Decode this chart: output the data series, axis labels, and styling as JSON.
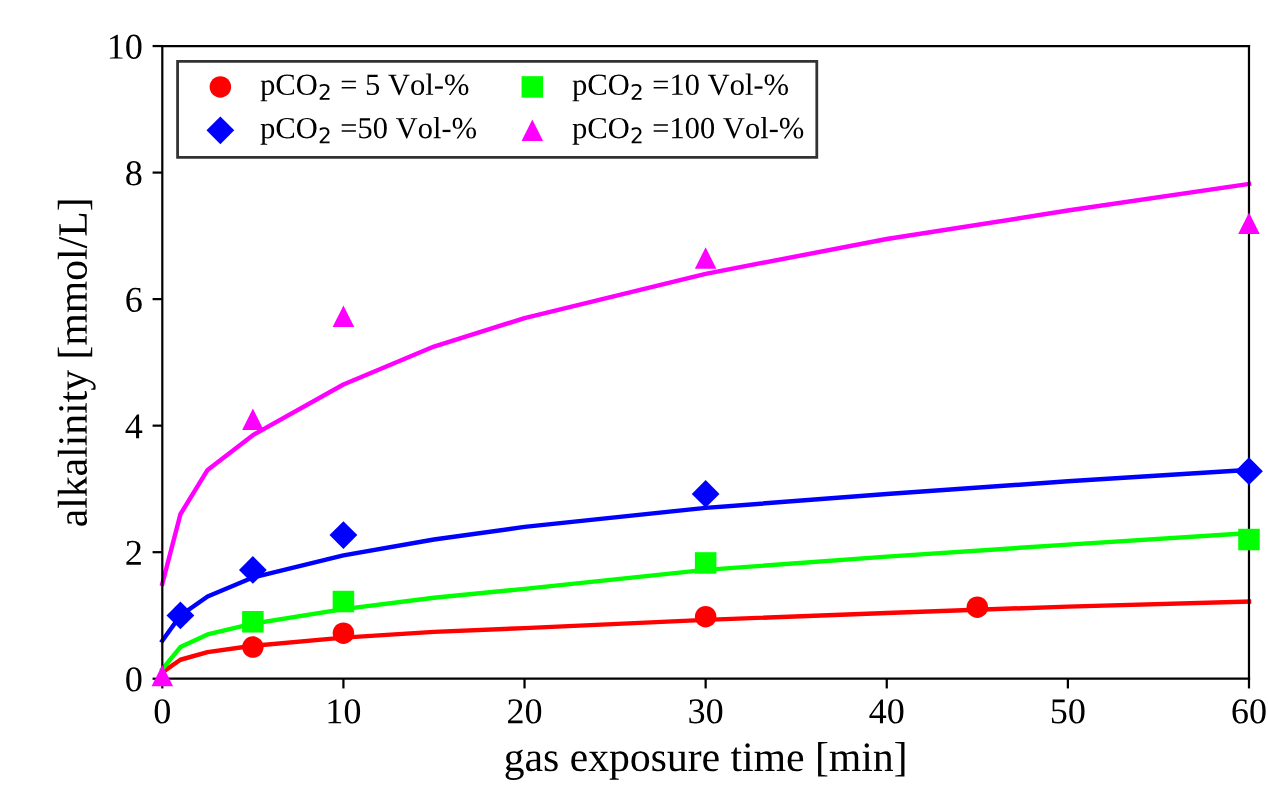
{
  "chart_data": {
    "type": "scatter",
    "xlabel": "gas exposure time [min]",
    "ylabel": "alkalinity [mmol/L]",
    "xlim": [
      0,
      60
    ],
    "xticks": [
      0,
      10,
      20,
      30,
      40,
      50,
      60
    ],
    "ylim": [
      0,
      10
    ],
    "yticks": [
      0,
      2,
      4,
      6,
      8,
      10
    ],
    "grid": false,
    "legend": "top left",
    "series": [
      {
        "name": "pCO$_{2}$ = 5 Vol-%",
        "color": "#ff0000",
        "marker": "circle",
        "x": [
          5,
          10,
          30,
          45
        ],
        "values": [
          0.5,
          0.72,
          0.98,
          1.13
        ]
      },
      {
        "name": "pCO$_{2}$ =10 Vol-%",
        "color": "#00ff00",
        "marker": "square",
        "x": [
          5,
          10,
          30,
          60
        ],
        "values": [
          0.9,
          1.22,
          1.83,
          2.2
        ]
      },
      {
        "name": "pCO$_{2}$ =50 Vol-%",
        "color": "#0000ff",
        "marker": "diamond",
        "x": [
          1,
          5,
          10,
          30,
          60
        ],
        "values": [
          1.0,
          1.72,
          2.27,
          2.92,
          3.28
        ]
      },
      {
        "name": "pCO$_{2}$ =100 Vol-%",
        "color": "#ff00ff",
        "marker": "triangle",
        "x": [
          0,
          5,
          10,
          30,
          60
        ],
        "values": [
          0.05,
          4.1,
          5.73,
          6.65,
          7.2
        ]
      },
      {
        "type": "line",
        "color": "#ff0000",
        "line_style": "solid",
        "x": [
          0,
          1,
          2.5,
          5,
          10,
          15,
          20,
          30,
          40,
          50,
          60
        ],
        "values": [
          0.1,
          0.3,
          0.42,
          0.52,
          0.65,
          0.74,
          0.8,
          0.93,
          1.04,
          1.14,
          1.22
        ]
      },
      {
        "type": "line",
        "color": "#00ff00",
        "line_style": "solid",
        "x": [
          0,
          1,
          2.5,
          5,
          10,
          15,
          20,
          30,
          40,
          50,
          60
        ],
        "values": [
          0.15,
          0.5,
          0.7,
          0.87,
          1.1,
          1.28,
          1.42,
          1.72,
          1.93,
          2.12,
          2.3
        ]
      },
      {
        "type": "line",
        "color": "#0000ff",
        "line_style": "solid",
        "x": [
          0,
          1,
          2.5,
          5,
          10,
          15,
          20,
          30,
          40,
          50,
          60
        ],
        "values": [
          0.6,
          1.0,
          1.3,
          1.6,
          1.95,
          2.2,
          2.4,
          2.7,
          2.92,
          3.12,
          3.3
        ]
      },
      {
        "type": "line",
        "color": "#ff00ff",
        "line_style": "solid",
        "x": [
          0,
          1,
          2.5,
          5,
          10,
          15,
          20,
          30,
          40,
          50,
          60
        ],
        "values": [
          1.5,
          2.6,
          3.3,
          3.85,
          4.65,
          5.25,
          5.7,
          6.4,
          6.95,
          7.4,
          7.82
        ]
      }
    ]
  }
}
